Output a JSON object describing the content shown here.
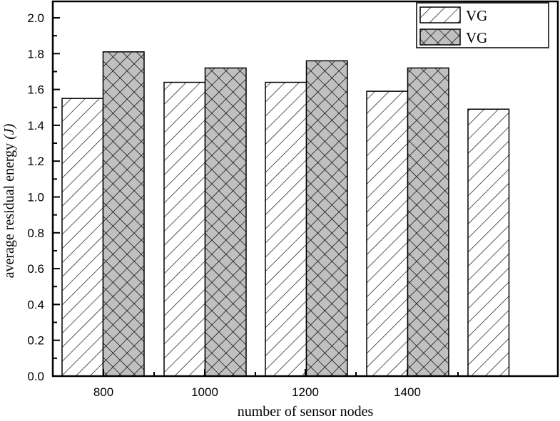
{
  "chart_data": {
    "type": "bar",
    "title": "",
    "xlabel": "number of sensor nodes",
    "ylabel": "average residual energy (J)",
    "ylabel_main": "average residual energy ",
    "ylabel_unit": "(J)",
    "ylim": [
      0.0,
      2.0
    ],
    "yticks": [
      "0.0",
      "0.2",
      "0.4",
      "0.6",
      "0.8",
      "1.0",
      "1.2",
      "1.4",
      "1.6",
      "1.8",
      "2.0"
    ],
    "categories": [
      "800",
      "1000",
      "1200",
      "1400",
      ""
    ],
    "series": [
      {
        "name": "VG",
        "pattern": "diagonal-hatch",
        "fill": "#ffffff",
        "values": [
          1.55,
          1.64,
          1.64,
          1.59,
          1.49
        ]
      },
      {
        "name": "VG",
        "pattern": "cross-hatch",
        "fill": "#c0c0c0",
        "values": [
          1.81,
          1.72,
          1.76,
          1.72,
          null
        ]
      }
    ],
    "legend_position": "top-right",
    "grid": false
  },
  "legend": {
    "items": [
      {
        "label": "VG"
      },
      {
        "label": "VG"
      }
    ]
  },
  "colors": {
    "axis": "#000000",
    "hatch_fill": "#ffffff",
    "cross_fill": "#c0c0c0"
  }
}
